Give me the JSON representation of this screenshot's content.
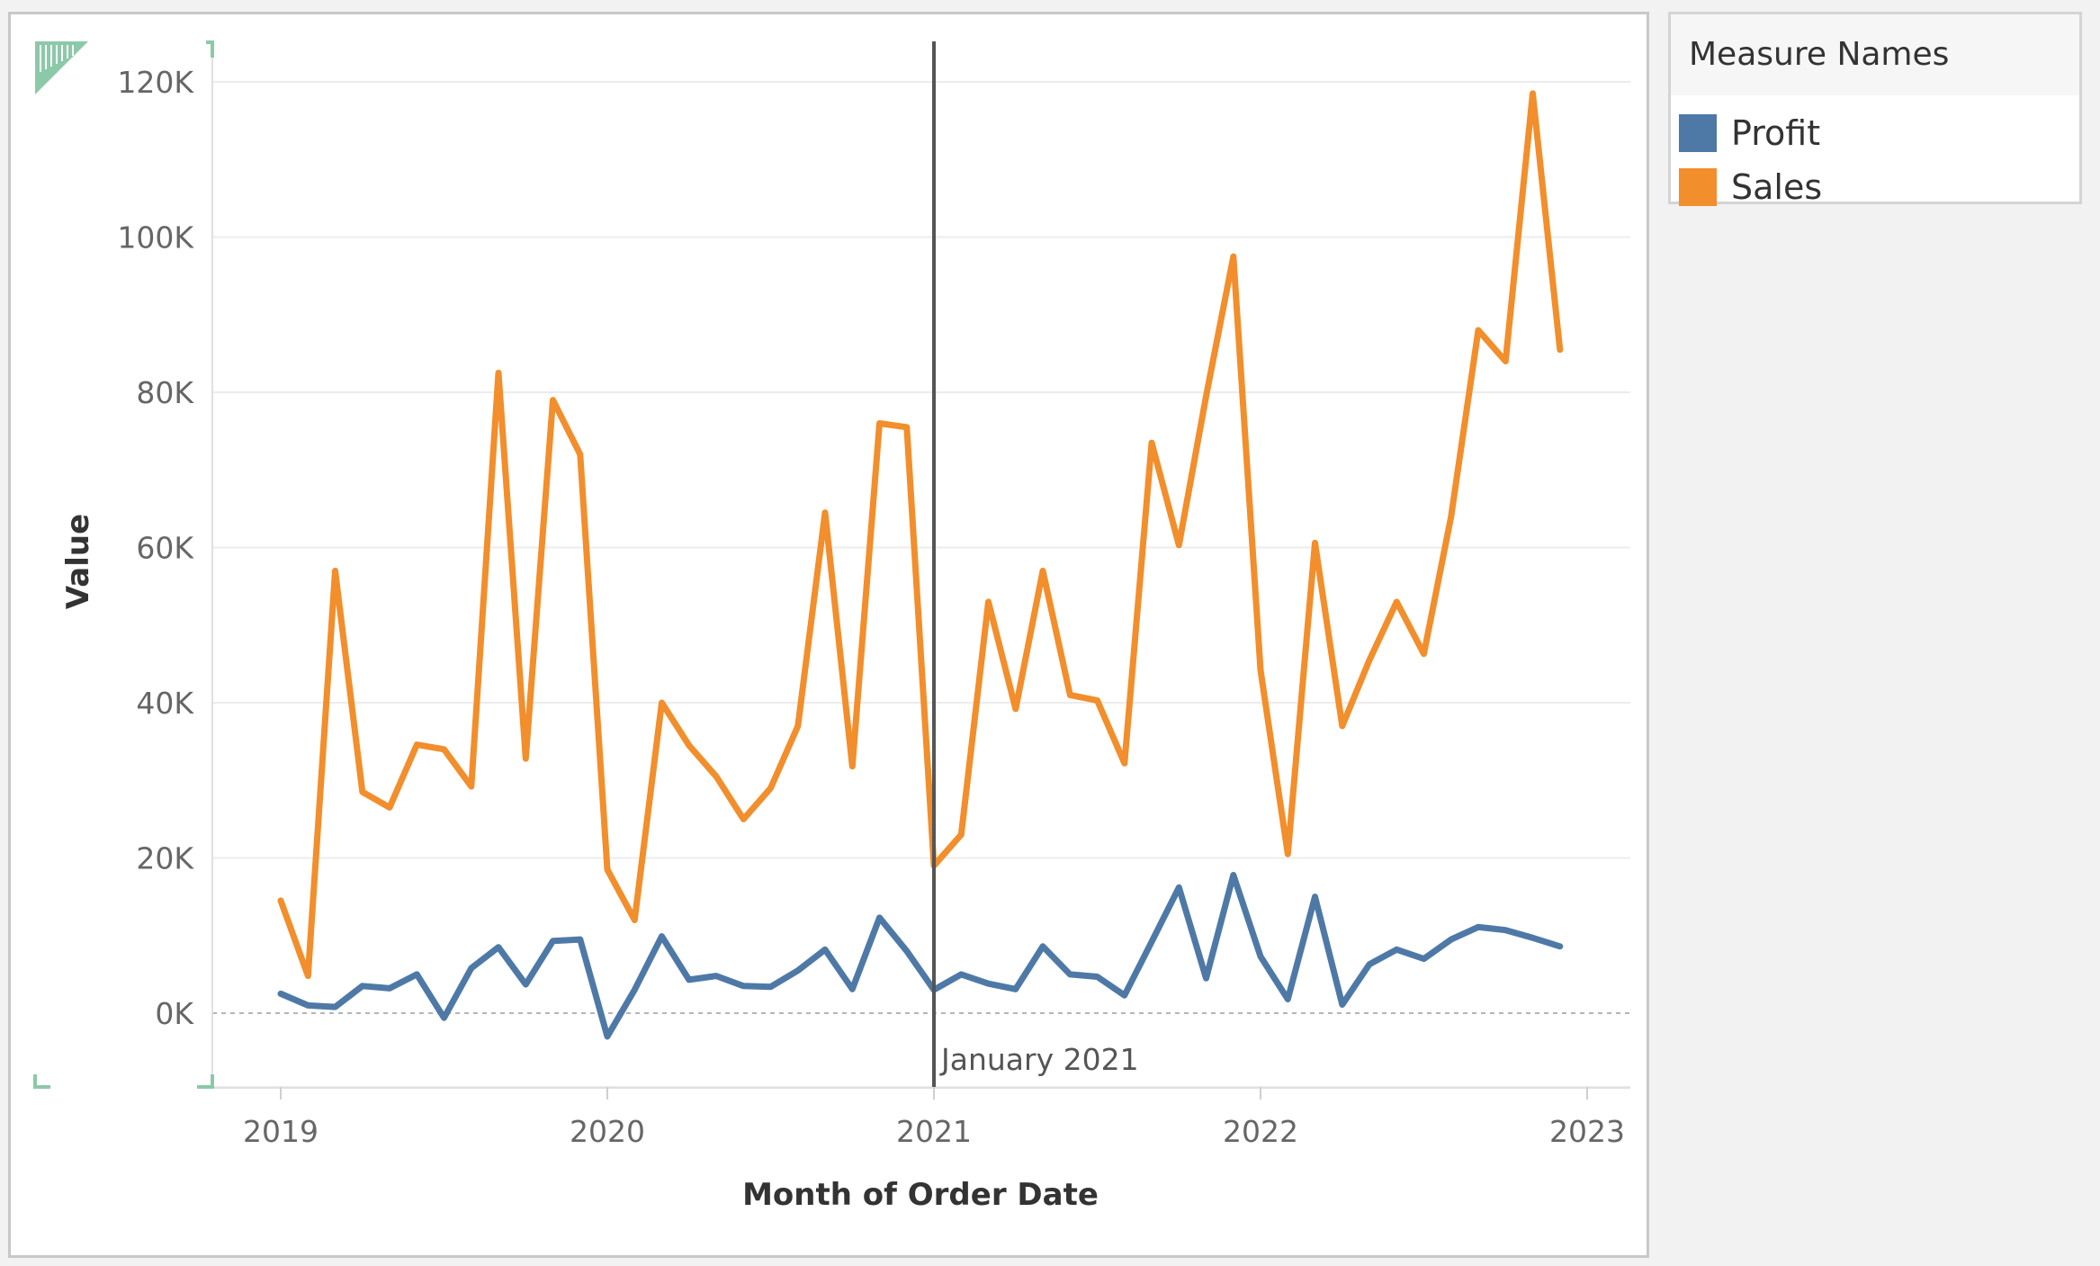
{
  "legend": {
    "title": "Measure Names",
    "items": [
      {
        "label": "Profit",
        "color": "#4e79a7"
      },
      {
        "label": "Sales",
        "color": "#f28e2b"
      }
    ]
  },
  "chart_data": {
    "type": "line",
    "xlabel": "Month of Order Date",
    "ylabel": "Value",
    "x_ticks": [
      "2019",
      "2020",
      "2021",
      "2022",
      "2023"
    ],
    "y_ticks": [
      "0K",
      "20K",
      "40K",
      "60K",
      "80K",
      "100K",
      "120K"
    ],
    "ylim": [
      -9000,
      125000
    ],
    "x": [
      "2019-01",
      "2019-02",
      "2019-03",
      "2019-04",
      "2019-05",
      "2019-06",
      "2019-07",
      "2019-08",
      "2019-09",
      "2019-10",
      "2019-11",
      "2019-12",
      "2020-01",
      "2020-02",
      "2020-03",
      "2020-04",
      "2020-05",
      "2020-06",
      "2020-07",
      "2020-08",
      "2020-09",
      "2020-10",
      "2020-11",
      "2020-12",
      "2021-01",
      "2021-02",
      "2021-03",
      "2021-04",
      "2021-05",
      "2021-06",
      "2021-07",
      "2021-08",
      "2021-09",
      "2021-10",
      "2021-11",
      "2021-12",
      "2022-01",
      "2022-02",
      "2022-03",
      "2022-04",
      "2022-05",
      "2022-06",
      "2022-07",
      "2022-08",
      "2022-09",
      "2022-10",
      "2022-11",
      "2022-12"
    ],
    "series": [
      {
        "name": "Profit",
        "color": "#4e79a7",
        "values": [
          2500,
          1000,
          800,
          3500,
          3200,
          5000,
          -600,
          5800,
          8500,
          3700,
          9300,
          9500,
          -3000,
          3000,
          9900,
          4300,
          4800,
          3500,
          3400,
          5500,
          8200,
          3100,
          12300,
          8000,
          3000,
          5000,
          3800,
          3100,
          8600,
          5000,
          4700,
          2300,
          9200,
          16200,
          4500,
          17800,
          7300,
          1800,
          15000,
          1100,
          6300,
          8200,
          7000,
          9500,
          11100,
          10700,
          9700,
          8600
        ]
      },
      {
        "name": "Sales",
        "color": "#f28e2b",
        "values": [
          14500,
          4800,
          57000,
          28500,
          26500,
          34600,
          34000,
          29200,
          82500,
          32800,
          79000,
          72000,
          18500,
          12000,
          40000,
          34500,
          30500,
          25000,
          29000,
          37000,
          64500,
          31800,
          76000,
          75500,
          19000,
          23000,
          53000,
          39200,
          57000,
          41000,
          40300,
          32200,
          73500,
          60300,
          79500,
          97500,
          44200,
          20500,
          60600,
          37000,
          45500,
          53000,
          46300,
          64000,
          88000,
          84000,
          118500,
          85500
        ]
      }
    ],
    "reference_line": {
      "x": "2021-01",
      "label": "January 2021"
    },
    "grid": true,
    "legend_placement": "right"
  }
}
